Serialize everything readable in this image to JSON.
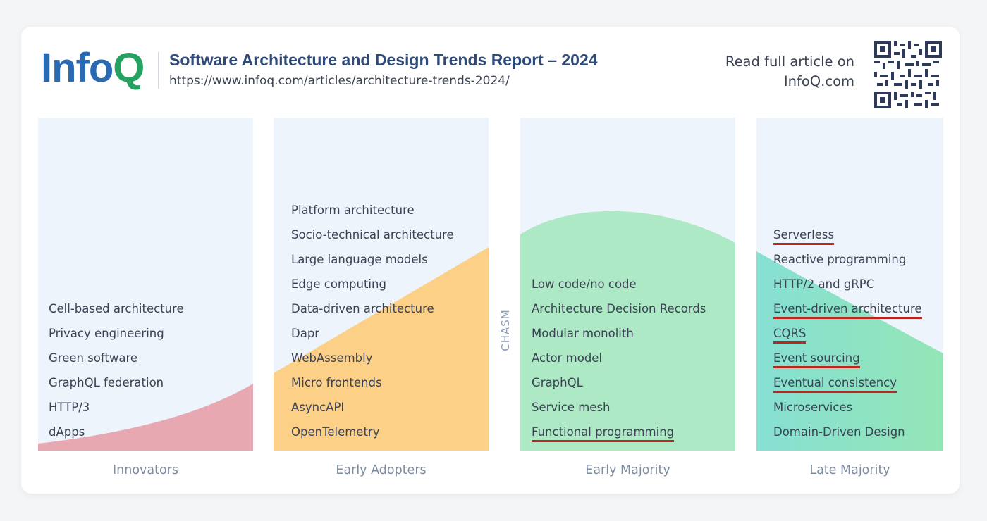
{
  "header": {
    "logo_info": "Info",
    "logo_q": "Q",
    "title": "Software Architecture and Design Trends Report – 2024",
    "url": "https://www.infoq.com/articles/architecture-trends-2024/",
    "read_line1": "Read full article on",
    "read_line2": "InfoQ.com"
  },
  "chasm_label": "CHASM",
  "columns": [
    {
      "label": "Innovators",
      "items": [
        "Cell-based architecture",
        "Privacy engineering",
        "Green software",
        "GraphQL federation",
        "HTTP/3",
        "dApps"
      ]
    },
    {
      "label": "Early Adopters",
      "items": [
        "Platform architecture",
        "Socio-technical architecture",
        "Large language models",
        "Edge computing",
        "Data-driven architecture",
        "Dapr",
        "WebAssembly",
        "Micro frontends",
        "AsyncAPI",
        "OpenTelemetry"
      ]
    },
    {
      "label": "Early Majority",
      "items": [
        "Low code/no code",
        "Architecture Decision Records",
        "Modular monolith",
        "Actor model",
        "GraphQL",
        "Service mesh",
        "Functional programming"
      ]
    },
    {
      "label": "Late Majority",
      "items": [
        "Serverless",
        "Reactive programming",
        "HTTP/2 and gRPC",
        "Event-driven architecture",
        "CQRS",
        "Event sourcing",
        "Eventual consistency",
        "Microservices",
        "Domain-Driven Design"
      ]
    }
  ],
  "colors": {
    "innovators": "#e8a8b2",
    "early_adopters": "#fcd187",
    "early_majority": "#ade9c4",
    "late_majority_start": "#86e0d3",
    "late_majority_end": "#94e5b6",
    "underline": "#c0241e"
  }
}
